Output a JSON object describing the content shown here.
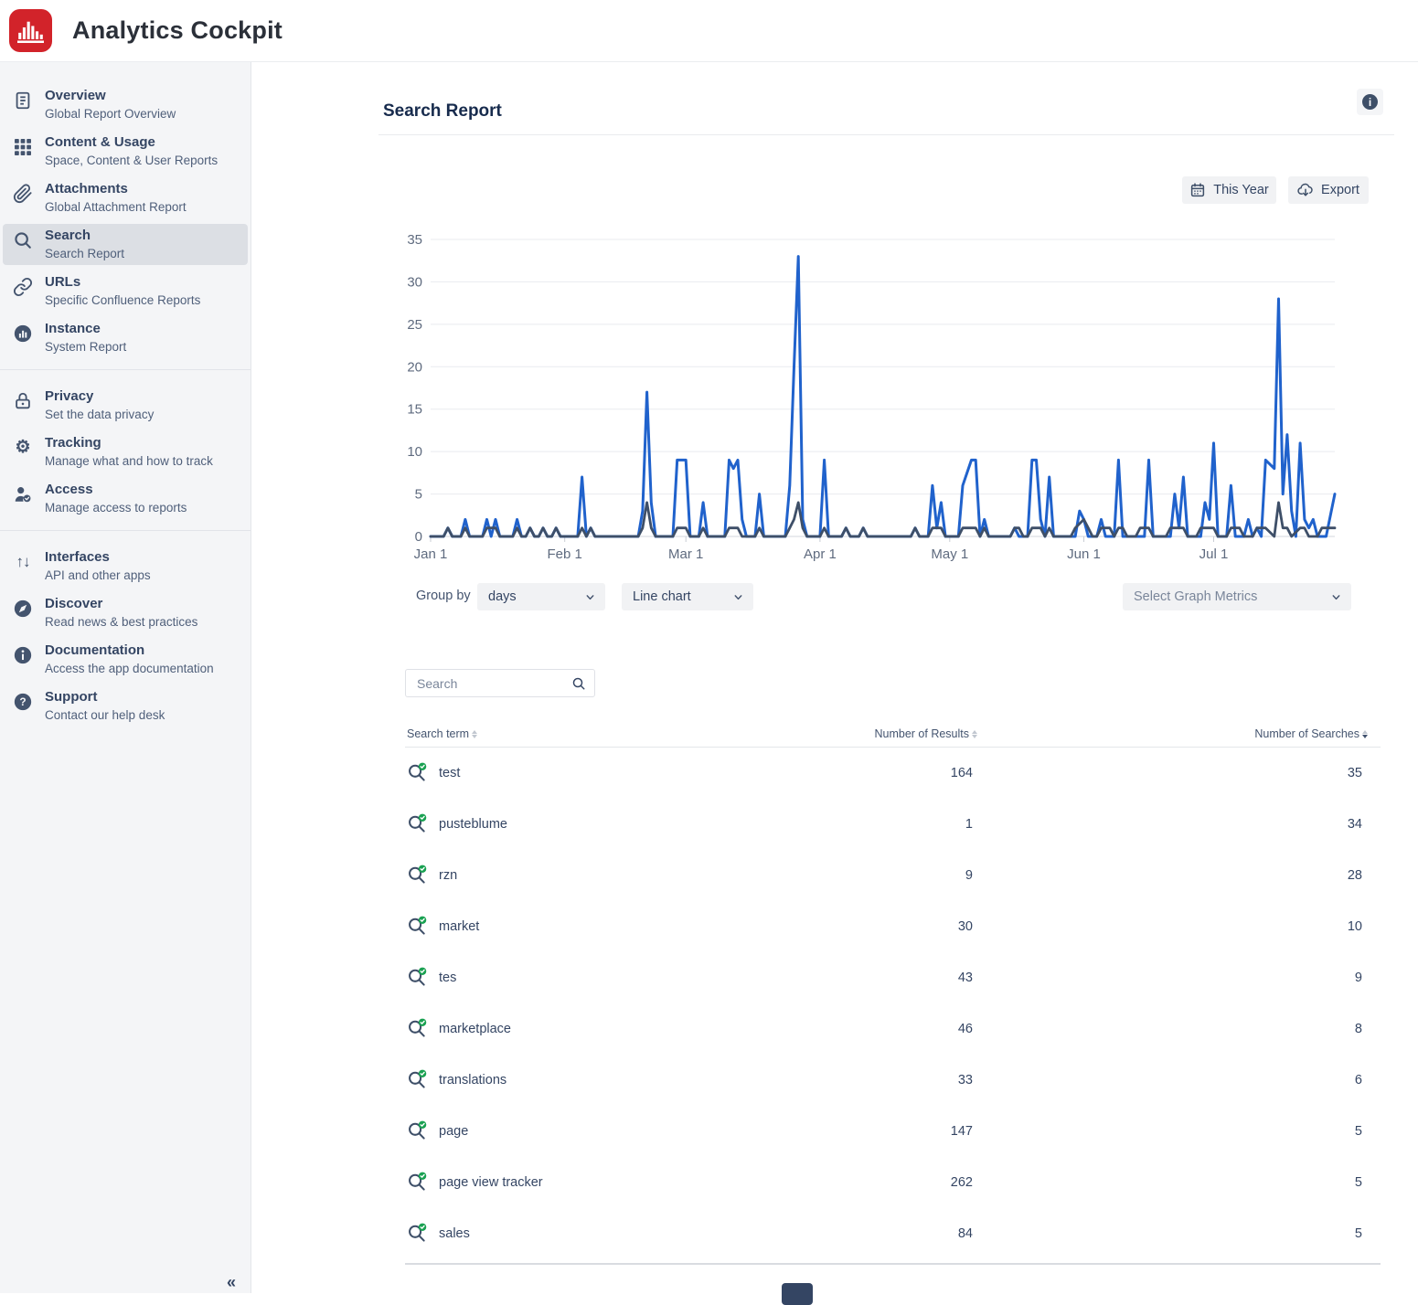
{
  "app": {
    "title": "Analytics Cockpit"
  },
  "colors": {
    "logo_red": "#d2232a",
    "accent_blue": "#2062cc",
    "line_dark": "#3e4f68",
    "badge_green": "#1aa152",
    "icon_navy": "#44546e"
  },
  "sidebar": {
    "collapse_icon": "«",
    "sections": [
      {
        "items": [
          {
            "icon": "document",
            "label": "Overview",
            "sublabel": "Global Report Overview",
            "selected": false
          },
          {
            "icon": "grid",
            "label": "Content & Usage",
            "sublabel": "Space, Content & User Reports",
            "selected": false
          },
          {
            "icon": "paperclip",
            "label": "Attachments",
            "sublabel": "Global Attachment Report",
            "selected": false
          },
          {
            "icon": "search",
            "label": "Search",
            "sublabel": "Search Report",
            "selected": true
          },
          {
            "icon": "link",
            "label": "URLs",
            "sublabel": "Specific Confluence Reports",
            "selected": false
          },
          {
            "icon": "instance",
            "label": "Instance",
            "sublabel": "System Report",
            "selected": false
          }
        ]
      },
      {
        "items": [
          {
            "icon": "lock",
            "label": "Privacy",
            "sublabel": "Set the data privacy",
            "selected": false
          },
          {
            "icon": "gear",
            "label": "Tracking",
            "sublabel": "Manage what and how to track",
            "selected": false
          },
          {
            "icon": "user-check",
            "label": "Access",
            "sublabel": "Manage access to reports",
            "selected": false
          }
        ]
      },
      {
        "items": [
          {
            "icon": "arrows-updown",
            "label": "Interfaces",
            "sublabel": "API and other apps",
            "selected": false
          },
          {
            "icon": "compass",
            "label": "Discover",
            "sublabel": "Read news & best practices",
            "selected": false
          },
          {
            "icon": "info",
            "label": "Documentation",
            "sublabel": "Access the app documentation",
            "selected": false
          },
          {
            "icon": "question",
            "label": "Support",
            "sublabel": "Contact our help desk",
            "selected": false
          }
        ]
      }
    ]
  },
  "page": {
    "title": "Search Report",
    "info_glyph": "i"
  },
  "toolbar": {
    "this_year_label": "This Year",
    "export_label": "Export"
  },
  "controls": {
    "group_by_label": "Group by",
    "group_by_value": "days",
    "chart_type_value": "Line chart",
    "metrics_placeholder": "Select Graph Metrics"
  },
  "search": {
    "placeholder": "Search"
  },
  "table": {
    "columns": [
      "Search term",
      "Number of Results",
      "Number of Searches"
    ],
    "sorted_by": "Number of Searches",
    "rows": [
      {
        "term": "test",
        "results": 164,
        "searches": 35
      },
      {
        "term": "pusteblume",
        "results": 1,
        "searches": 34
      },
      {
        "term": "rzn",
        "results": 9,
        "searches": 28
      },
      {
        "term": "market",
        "results": 30,
        "searches": 10
      },
      {
        "term": "tes",
        "results": 43,
        "searches": 9
      },
      {
        "term": "marketplace",
        "results": 46,
        "searches": 8
      },
      {
        "term": "translations",
        "results": 33,
        "searches": 6
      },
      {
        "term": "page",
        "results": 147,
        "searches": 5
      },
      {
        "term": "page view tracker",
        "results": 262,
        "searches": 5
      },
      {
        "term": "sales",
        "results": 84,
        "searches": 5
      }
    ]
  },
  "chart_data": {
    "type": "line",
    "grid": true,
    "legend": "none",
    "ylim": [
      0,
      35
    ],
    "yticks": [
      0,
      5,
      10,
      15,
      20,
      25,
      30,
      35
    ],
    "x_range_days": 209,
    "x_tick_days": [
      0,
      31,
      59,
      90,
      120,
      151,
      181
    ],
    "x_tick_labels": [
      "Jan 1",
      "Feb 1",
      "Mar 1",
      "Apr 1",
      "May 1",
      "Jun 1",
      "Jul 1"
    ],
    "series": [
      {
        "name": "searches-per-day",
        "color": "#2062cc",
        "width": 3,
        "points": [
          [
            0,
            0
          ],
          [
            3,
            0
          ],
          [
            4,
            1
          ],
          [
            5,
            0
          ],
          [
            7,
            0
          ],
          [
            8,
            2
          ],
          [
            9,
            0
          ],
          [
            12,
            0
          ],
          [
            13,
            2
          ],
          [
            14,
            0
          ],
          [
            15,
            2
          ],
          [
            16,
            0
          ],
          [
            19,
            0
          ],
          [
            20,
            2
          ],
          [
            21,
            0
          ],
          [
            22,
            0
          ],
          [
            23,
            1
          ],
          [
            24,
            0
          ],
          [
            25,
            0
          ],
          [
            26,
            1
          ],
          [
            27,
            0
          ],
          [
            28,
            0
          ],
          [
            29,
            1
          ],
          [
            30,
            0
          ],
          [
            34,
            0
          ],
          [
            35,
            7
          ],
          [
            36,
            0
          ],
          [
            37,
            1
          ],
          [
            38,
            0
          ],
          [
            48,
            0
          ],
          [
            49,
            3
          ],
          [
            50,
            17
          ],
          [
            51,
            4
          ],
          [
            52,
            0
          ],
          [
            56,
            0
          ],
          [
            57,
            9
          ],
          [
            59,
            9
          ],
          [
            60,
            0
          ],
          [
            62,
            0
          ],
          [
            63,
            4
          ],
          [
            64,
            0
          ],
          [
            68,
            0
          ],
          [
            69,
            9
          ],
          [
            70,
            8
          ],
          [
            71,
            9
          ],
          [
            72,
            2
          ],
          [
            73,
            0
          ],
          [
            75,
            0
          ],
          [
            76,
            5
          ],
          [
            77,
            0
          ],
          [
            82,
            0
          ],
          [
            83,
            6
          ],
          [
            84,
            20
          ],
          [
            85,
            33
          ],
          [
            86,
            2
          ],
          [
            87,
            0
          ],
          [
            90,
            0
          ],
          [
            91,
            9
          ],
          [
            92,
            0
          ],
          [
            95,
            0
          ],
          [
            96,
            1
          ],
          [
            97,
            0
          ],
          [
            99,
            0
          ],
          [
            100,
            1
          ],
          [
            101,
            0
          ],
          [
            111,
            0
          ],
          [
            112,
            1
          ],
          [
            113,
            0
          ],
          [
            115,
            0
          ],
          [
            116,
            6
          ],
          [
            117,
            1
          ],
          [
            118,
            4
          ],
          [
            119,
            0
          ],
          [
            122,
            0
          ],
          [
            123,
            6
          ],
          [
            125,
            9
          ],
          [
            126,
            9
          ],
          [
            127,
            0
          ],
          [
            128,
            2
          ],
          [
            129,
            0
          ],
          [
            134,
            0
          ],
          [
            135,
            1
          ],
          [
            136,
            0
          ],
          [
            138,
            0
          ],
          [
            139,
            9
          ],
          [
            140,
            9
          ],
          [
            141,
            2
          ],
          [
            142,
            0
          ],
          [
            143,
            7
          ],
          [
            144,
            0
          ],
          [
            149,
            0
          ],
          [
            150,
            3
          ],
          [
            151,
            2
          ],
          [
            152,
            0
          ],
          [
            154,
            0
          ],
          [
            155,
            2
          ],
          [
            156,
            0
          ],
          [
            158,
            0
          ],
          [
            159,
            9
          ],
          [
            160,
            0
          ],
          [
            165,
            0
          ],
          [
            166,
            9
          ],
          [
            167,
            0
          ],
          [
            171,
            0
          ],
          [
            172,
            5
          ],
          [
            173,
            1
          ],
          [
            174,
            7
          ],
          [
            175,
            0
          ],
          [
            178,
            0
          ],
          [
            179,
            4
          ],
          [
            180,
            2
          ],
          [
            181,
            11
          ],
          [
            182,
            0
          ],
          [
            184,
            0
          ],
          [
            185,
            6
          ],
          [
            186,
            0
          ],
          [
            188,
            0
          ],
          [
            189,
            2
          ],
          [
            190,
            0
          ],
          [
            191,
            1
          ],
          [
            192,
            0
          ],
          [
            193,
            9
          ],
          [
            195,
            8
          ],
          [
            196,
            28
          ],
          [
            197,
            5
          ],
          [
            198,
            12
          ],
          [
            199,
            3
          ],
          [
            200,
            0
          ],
          [
            201,
            11
          ],
          [
            202,
            2
          ],
          [
            203,
            1
          ],
          [
            204,
            2
          ],
          [
            205,
            0
          ],
          [
            207,
            0
          ],
          [
            209,
            5
          ]
        ]
      },
      {
        "name": "secondary-metric",
        "color": "#3e4f68",
        "width": 2.8,
        "points": [
          [
            0,
            0
          ],
          [
            3,
            0
          ],
          [
            4,
            1
          ],
          [
            5,
            0
          ],
          [
            7,
            0
          ],
          [
            8,
            1
          ],
          [
            9,
            0
          ],
          [
            12,
            0
          ],
          [
            13,
            1
          ],
          [
            14,
            1
          ],
          [
            15,
            1
          ],
          [
            16,
            0
          ],
          [
            19,
            0
          ],
          [
            20,
            1
          ],
          [
            21,
            0
          ],
          [
            22,
            0
          ],
          [
            23,
            1
          ],
          [
            24,
            0
          ],
          [
            25,
            0
          ],
          [
            26,
            1
          ],
          [
            27,
            0
          ],
          [
            28,
            0
          ],
          [
            29,
            1
          ],
          [
            30,
            0
          ],
          [
            34,
            0
          ],
          [
            35,
            1
          ],
          [
            36,
            0
          ],
          [
            37,
            1
          ],
          [
            38,
            0
          ],
          [
            48,
            0
          ],
          [
            49,
            1
          ],
          [
            50,
            4
          ],
          [
            51,
            1
          ],
          [
            52,
            0
          ],
          [
            56,
            0
          ],
          [
            57,
            1
          ],
          [
            59,
            1
          ],
          [
            60,
            0
          ],
          [
            62,
            0
          ],
          [
            63,
            1
          ],
          [
            64,
            0
          ],
          [
            68,
            0
          ],
          [
            69,
            1
          ],
          [
            71,
            1
          ],
          [
            72,
            0
          ],
          [
            75,
            0
          ],
          [
            76,
            1
          ],
          [
            77,
            0
          ],
          [
            82,
            0
          ],
          [
            83,
            1
          ],
          [
            84,
            2
          ],
          [
            85,
            4
          ],
          [
            86,
            1
          ],
          [
            87,
            0
          ],
          [
            90,
            0
          ],
          [
            91,
            1
          ],
          [
            92,
            0
          ],
          [
            95,
            0
          ],
          [
            96,
            1
          ],
          [
            97,
            0
          ],
          [
            99,
            0
          ],
          [
            100,
            1
          ],
          [
            101,
            0
          ],
          [
            111,
            0
          ],
          [
            112,
            1
          ],
          [
            113,
            0
          ],
          [
            115,
            0
          ],
          [
            116,
            1
          ],
          [
            118,
            1
          ],
          [
            119,
            0
          ],
          [
            122,
            0
          ],
          [
            123,
            1
          ],
          [
            126,
            1
          ],
          [
            127,
            0
          ],
          [
            128,
            1
          ],
          [
            129,
            0
          ],
          [
            134,
            0
          ],
          [
            135,
            1
          ],
          [
            136,
            1
          ],
          [
            137,
            0
          ],
          [
            138,
            0
          ],
          [
            139,
            1
          ],
          [
            141,
            1
          ],
          [
            142,
            0
          ],
          [
            143,
            1
          ],
          [
            144,
            0
          ],
          [
            148,
            0
          ],
          [
            149,
            1
          ],
          [
            151,
            2
          ],
          [
            152,
            1
          ],
          [
            153,
            0
          ],
          [
            154,
            0
          ],
          [
            155,
            1
          ],
          [
            157,
            1
          ],
          [
            158,
            0
          ],
          [
            159,
            1
          ],
          [
            160,
            1
          ],
          [
            161,
            0
          ],
          [
            163,
            0
          ],
          [
            164,
            1
          ],
          [
            165,
            1
          ],
          [
            166,
            1
          ],
          [
            167,
            0
          ],
          [
            170,
            0
          ],
          [
            171,
            1
          ],
          [
            174,
            1
          ],
          [
            175,
            0
          ],
          [
            177,
            0
          ],
          [
            178,
            1
          ],
          [
            180,
            1
          ],
          [
            181,
            1
          ],
          [
            182,
            0
          ],
          [
            184,
            0
          ],
          [
            185,
            1
          ],
          [
            187,
            1
          ],
          [
            188,
            0
          ],
          [
            190,
            0
          ],
          [
            191,
            1
          ],
          [
            192,
            1
          ],
          [
            193,
            1
          ],
          [
            195,
            0
          ],
          [
            196,
            4
          ],
          [
            197,
            1
          ],
          [
            198,
            1
          ],
          [
            199,
            0
          ],
          [
            201,
            1
          ],
          [
            202,
            1
          ],
          [
            203,
            0
          ],
          [
            205,
            0
          ],
          [
            206,
            1
          ],
          [
            207,
            1
          ],
          [
            209,
            1
          ]
        ]
      }
    ]
  }
}
